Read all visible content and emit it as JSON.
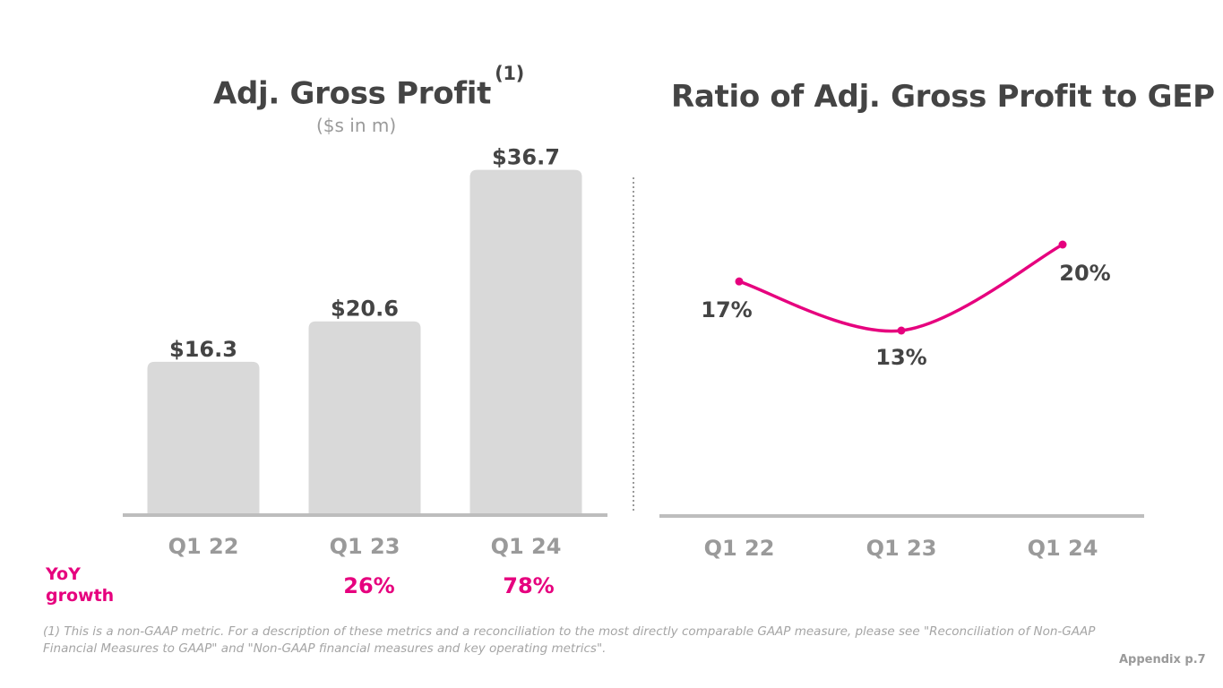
{
  "left": {
    "title": "Adj. Gross Profit",
    "superscript": "(1)",
    "subtitle": "($s in m)"
  },
  "right": {
    "title": "Ratio of Adj. Gross Profit to GEP"
  },
  "yoy": {
    "label": "YoY growth",
    "values": [
      "",
      "26%",
      "78%"
    ]
  },
  "footnote": "(1) This is a non-GAAP metric. For a description of these metrics and a reconciliation to the most directly comparable GAAP measure, please see \"Reconciliation of Non-GAAP Financial Measures to GAAP\" and \"Non-GAAP financial measures and key operating metrics\".",
  "page_ref": "Appendix p.7",
  "colors": {
    "bar": "#d9d9d9",
    "line": "#e6007e",
    "text_dark": "#444444",
    "axis_label": "#9a9a9a",
    "accent": "#e6007e"
  },
  "chart_data": [
    {
      "type": "bar",
      "title": "Adj. Gross Profit (1)",
      "subtitle": "($s in m)",
      "categories": [
        "Q1 22",
        "Q1 23",
        "Q1 24"
      ],
      "values": [
        16.3,
        20.6,
        36.7
      ],
      "labels": [
        "$16.3",
        "$20.6",
        "$36.7"
      ],
      "xlabel": "",
      "ylabel": "",
      "ylim": [
        0,
        40
      ],
      "grid": false
    },
    {
      "type": "line",
      "title": "Ratio of Adj. Gross Profit to GEP",
      "categories": [
        "Q1 22",
        "Q1 23",
        "Q1 24"
      ],
      "values": [
        17,
        13,
        20
      ],
      "labels": [
        "17%",
        "13%",
        "20%"
      ],
      "xlabel": "",
      "ylabel": "",
      "ylim": [
        0,
        30
      ],
      "grid": false
    }
  ]
}
